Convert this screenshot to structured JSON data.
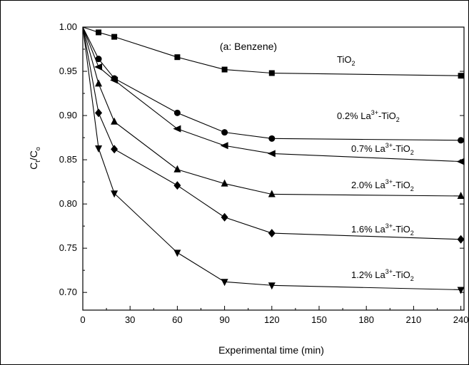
{
  "chart_data": {
    "type": "line",
    "annotation": "(a: Benzene)",
    "xlabel": "Experimental time (min)",
    "ylabel": {
      "main": "C",
      "sub1": "t",
      "mid": "/C",
      "sub2": "o"
    },
    "xlim": [
      0,
      242
    ],
    "ylim": [
      0.68,
      1.0
    ],
    "xticks": [
      "0",
      "30",
      "60",
      "90",
      "120",
      "150",
      "180",
      "210",
      "240"
    ],
    "yticks": [
      "1.00",
      "0.95",
      "0.90",
      "0.85",
      "0.80",
      "0.75",
      "0.70"
    ],
    "x": [
      0,
      10,
      20,
      60,
      90,
      120,
      240
    ],
    "series": [
      {
        "name": "TiO2",
        "parts": [
          {
            "t": "TiO"
          },
          {
            "t": "2",
            "sub": true
          }
        ],
        "marker": "square",
        "values": [
          1.0,
          0.994,
          0.989,
          0.966,
          0.952,
          0.948,
          0.945
        ]
      },
      {
        "name": "0.2% La3+-TiO2",
        "parts": [
          {
            "t": "0.2% La"
          },
          {
            "t": "3+",
            "sup": true
          },
          {
            "t": "-TiO"
          },
          {
            "t": "2",
            "sub": true
          }
        ],
        "marker": "circle",
        "values": [
          1.0,
          0.964,
          0.942,
          0.903,
          0.881,
          0.874,
          0.872
        ]
      },
      {
        "name": "0.7% La3+-TiO2",
        "parts": [
          {
            "t": "0.7% La"
          },
          {
            "t": "3+",
            "sup": true
          },
          {
            "t": "-TiO"
          },
          {
            "t": "2",
            "sub": true
          }
        ],
        "marker": "triangle-left",
        "values": [
          1.0,
          0.955,
          0.94,
          0.885,
          0.866,
          0.857,
          0.848
        ]
      },
      {
        "name": "2.0% La3+-TiO2",
        "parts": [
          {
            "t": "2.0% La"
          },
          {
            "t": "3+",
            "sup": true
          },
          {
            "t": "-TiO"
          },
          {
            "t": "2",
            "sub": true
          }
        ],
        "marker": "triangle-up",
        "values": [
          1.0,
          0.936,
          0.893,
          0.839,
          0.823,
          0.811,
          0.809
        ]
      },
      {
        "name": "1.6% La3+-TiO2",
        "parts": [
          {
            "t": "1.6% La"
          },
          {
            "t": "3+",
            "sup": true
          },
          {
            "t": "-TiO"
          },
          {
            "t": "2",
            "sub": true
          }
        ],
        "marker": "diamond",
        "values": [
          1.0,
          0.903,
          0.862,
          0.821,
          0.785,
          0.767,
          0.76
        ]
      },
      {
        "name": "1.2% La3+-TiO2",
        "parts": [
          {
            "t": "1.2% La"
          },
          {
            "t": "3+",
            "sup": true
          },
          {
            "t": "-TiO"
          },
          {
            "t": "2",
            "sub": true
          }
        ],
        "marker": "triangle-down",
        "values": [
          1.0,
          0.863,
          0.812,
          0.745,
          0.712,
          0.708,
          0.703
        ]
      }
    ],
    "grid": false,
    "legend": "inline labels"
  }
}
